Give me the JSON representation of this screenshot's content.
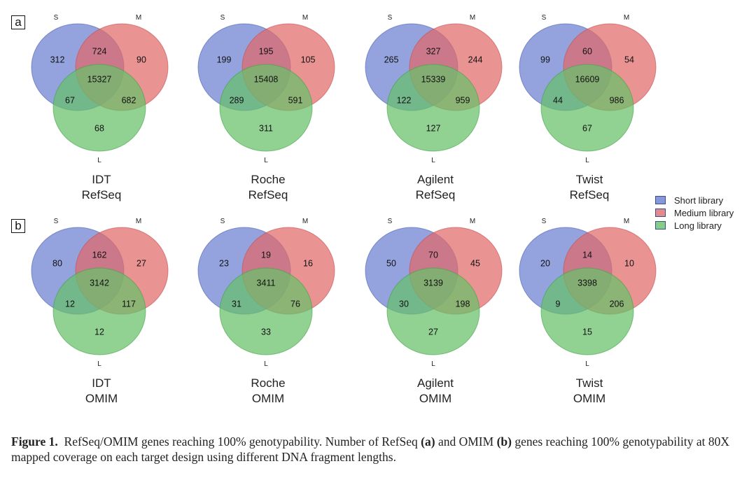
{
  "figure": {
    "panels": [
      {
        "tag": "a",
        "row_label": "RefSeq"
      },
      {
        "tag": "b",
        "row_label": "OMIM"
      }
    ],
    "set_labels": {
      "s": "S",
      "m": "M",
      "l": "L"
    },
    "colors": {
      "short": "#6b80d0",
      "medium": "#e06a6a",
      "long": "#66c06a"
    },
    "legend": [
      {
        "label": "Short library",
        "color": "#8797d8"
      },
      {
        "label": "Medium library",
        "color": "#e58a8a"
      },
      {
        "label": "Long library",
        "color": "#85cf85"
      }
    ],
    "caption": {
      "label": "Figure 1.",
      "text_1": "RefSeq/OMIM genes reaching 100% genotypability. Number of RefSeq ",
      "bold_a": "(a)",
      "text_2": " and OMIM ",
      "bold_b": "(b)",
      "text_3": " genes reaching 100% genotypability at 80X mapped coverage on each target design using different DNA fragment lengths."
    }
  },
  "chart_data": [
    {
      "type": "venn",
      "title": "IDT RefSeq",
      "vendor": "IDT",
      "gene_set": "RefSeq",
      "panel": "a",
      "sets": [
        "S",
        "M",
        "L"
      ],
      "regions": {
        "S_only": 312,
        "M_only": 90,
        "L_only": 68,
        "S_M": 724,
        "S_L": 67,
        "M_L": 682,
        "S_M_L": 15327
      }
    },
    {
      "type": "venn",
      "title": "Roche RefSeq",
      "vendor": "Roche",
      "gene_set": "RefSeq",
      "panel": "a",
      "sets": [
        "S",
        "M",
        "L"
      ],
      "regions": {
        "S_only": 199,
        "M_only": 105,
        "L_only": 311,
        "S_M": 195,
        "S_L": 289,
        "M_L": 591,
        "S_M_L": 15408
      }
    },
    {
      "type": "venn",
      "title": "Agilent RefSeq",
      "vendor": "Agilent",
      "gene_set": "RefSeq",
      "panel": "a",
      "sets": [
        "S",
        "M",
        "L"
      ],
      "regions": {
        "S_only": 265,
        "M_only": 244,
        "L_only": 127,
        "S_M": 327,
        "S_L": 122,
        "M_L": 959,
        "S_M_L": 15339
      }
    },
    {
      "type": "venn",
      "title": "Twist RefSeq",
      "vendor": "Twist",
      "gene_set": "RefSeq",
      "panel": "a",
      "sets": [
        "S",
        "M",
        "L"
      ],
      "regions": {
        "S_only": 99,
        "M_only": 54,
        "L_only": 67,
        "S_M": 60,
        "S_L": 44,
        "M_L": 986,
        "S_M_L": 16609
      }
    },
    {
      "type": "venn",
      "title": "IDT OMIM",
      "vendor": "IDT",
      "gene_set": "OMIM",
      "panel": "b",
      "sets": [
        "S",
        "M",
        "L"
      ],
      "regions": {
        "S_only": 80,
        "M_only": 27,
        "L_only": 12,
        "S_M": 162,
        "S_L": 12,
        "M_L": 117,
        "S_M_L": 3142
      }
    },
    {
      "type": "venn",
      "title": "Roche OMIM",
      "vendor": "Roche",
      "gene_set": "OMIM",
      "panel": "b",
      "sets": [
        "S",
        "M",
        "L"
      ],
      "regions": {
        "S_only": 23,
        "M_only": 16,
        "L_only": 33,
        "S_M": 19,
        "S_L": 31,
        "M_L": 76,
        "S_M_L": 3411
      }
    },
    {
      "type": "venn",
      "title": "Agilent OMIM",
      "vendor": "Agilent",
      "gene_set": "OMIM",
      "panel": "b",
      "sets": [
        "S",
        "M",
        "L"
      ],
      "regions": {
        "S_only": 50,
        "M_only": 45,
        "L_only": 27,
        "S_M": 70,
        "S_L": 30,
        "M_L": 198,
        "S_M_L": 3139
      }
    },
    {
      "type": "venn",
      "title": "Twist OMIM",
      "vendor": "Twist",
      "gene_set": "OMIM",
      "panel": "b",
      "sets": [
        "S",
        "M",
        "L"
      ],
      "regions": {
        "S_only": 20,
        "M_only": 10,
        "L_only": 15,
        "S_M": 14,
        "S_L": 9,
        "M_L": 206,
        "S_M_L": 3398
      }
    }
  ]
}
